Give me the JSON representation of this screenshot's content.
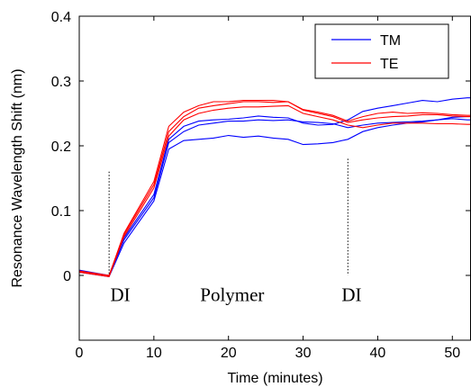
{
  "chart_data": {
    "type": "line",
    "xlabel": "Time (minutes)",
    "ylabel": "Resonance Wavelength Shift (nm)",
    "xlim": [
      0,
      52.5
    ],
    "ylim": [
      -0.1,
      0.4
    ],
    "xticks": [
      0,
      10,
      20,
      30,
      40,
      50
    ],
    "yticks": [
      0,
      0.1,
      0.2,
      0.3,
      0.4
    ],
    "xtick_labels": [
      "0",
      "10",
      "20",
      "30",
      "40",
      "50"
    ],
    "ytick_labels": [
      "0",
      "0.1",
      "0.2",
      "0.3",
      "0.4"
    ],
    "grid": false,
    "legend_position": "top-right",
    "legend": [
      {
        "label": "TM",
        "color": "#0000ff"
      },
      {
        "label": "TE",
        "color": "#ff0000"
      }
    ],
    "series": [
      {
        "name": "TM",
        "color": "#0000ff",
        "x": [
          0,
          4,
          6,
          10,
          12,
          14,
          16,
          18,
          20,
          22,
          24,
          26,
          28,
          30,
          32,
          34,
          36,
          38,
          40,
          42,
          44,
          46,
          48,
          50,
          52,
          52.5
        ],
        "y": [
          0.005,
          -0.002,
          0.05,
          0.115,
          0.195,
          0.208,
          0.21,
          0.212,
          0.216,
          0.213,
          0.215,
          0.212,
          0.21,
          0.202,
          0.203,
          0.205,
          0.21,
          0.222,
          0.228,
          0.232,
          0.235,
          0.237,
          0.24,
          0.242,
          0.24,
          0.24
        ]
      },
      {
        "name": "TM",
        "color": "#0000ff",
        "x": [
          0,
          4,
          6,
          10,
          12,
          14,
          16,
          18,
          20,
          22,
          24,
          26,
          28,
          30,
          32,
          34,
          36,
          38,
          40,
          42,
          44,
          46,
          48,
          50,
          52,
          52.5
        ],
        "y": [
          0.008,
          0.0,
          0.055,
          0.12,
          0.205,
          0.222,
          0.232,
          0.235,
          0.238,
          0.238,
          0.24,
          0.239,
          0.24,
          0.237,
          0.236,
          0.234,
          0.228,
          0.232,
          0.235,
          0.236,
          0.237,
          0.238,
          0.24,
          0.244,
          0.245,
          0.245
        ]
      },
      {
        "name": "TM",
        "color": "#0000ff",
        "x": [
          0,
          4,
          6,
          10,
          12,
          14,
          16,
          18,
          20,
          22,
          24,
          26,
          28,
          30,
          32,
          34,
          36,
          38,
          40,
          42,
          44,
          46,
          48,
          50,
          52,
          52.5
        ],
        "y": [
          0.006,
          -0.001,
          0.058,
          0.125,
          0.21,
          0.23,
          0.238,
          0.24,
          0.241,
          0.243,
          0.246,
          0.244,
          0.243,
          0.235,
          0.232,
          0.233,
          0.24,
          0.253,
          0.258,
          0.262,
          0.266,
          0.27,
          0.268,
          0.272,
          0.274,
          0.274
        ]
      },
      {
        "name": "TE",
        "color": "#ff0000",
        "x": [
          0,
          4,
          6,
          10,
          12,
          14,
          16,
          18,
          20,
          22,
          24,
          26,
          28,
          30,
          32,
          34,
          36,
          38,
          40,
          42,
          44,
          46,
          48,
          50,
          52,
          52.5
        ],
        "y": [
          0.005,
          -0.002,
          0.06,
          0.135,
          0.215,
          0.24,
          0.25,
          0.255,
          0.258,
          0.26,
          0.26,
          0.261,
          0.262,
          0.25,
          0.245,
          0.24,
          0.232,
          0.228,
          0.232,
          0.235,
          0.235,
          0.235,
          0.234,
          0.234,
          0.233,
          0.233
        ]
      },
      {
        "name": "TE",
        "color": "#ff0000",
        "x": [
          0,
          4,
          6,
          10,
          12,
          14,
          16,
          18,
          20,
          22,
          24,
          26,
          28,
          30,
          32,
          34,
          36,
          38,
          40,
          42,
          44,
          46,
          48,
          50,
          52,
          52.5
        ],
        "y": [
          0.007,
          0.0,
          0.063,
          0.14,
          0.222,
          0.245,
          0.258,
          0.262,
          0.265,
          0.268,
          0.268,
          0.267,
          0.268,
          0.255,
          0.25,
          0.245,
          0.236,
          0.24,
          0.243,
          0.245,
          0.246,
          0.248,
          0.248,
          0.246,
          0.245,
          0.245
        ]
      },
      {
        "name": "TE",
        "color": "#ff0000",
        "x": [
          0,
          4,
          6,
          10,
          12,
          14,
          16,
          18,
          20,
          22,
          24,
          26,
          28,
          30,
          32,
          34,
          36,
          38,
          40,
          42,
          44,
          46,
          48,
          50,
          52,
          52.5
        ],
        "y": [
          0.006,
          -0.001,
          0.065,
          0.145,
          0.23,
          0.252,
          0.262,
          0.268,
          0.268,
          0.27,
          0.27,
          0.27,
          0.268,
          0.256,
          0.252,
          0.247,
          0.238,
          0.245,
          0.25,
          0.252,
          0.25,
          0.251,
          0.25,
          0.248,
          0.247,
          0.247
        ]
      }
    ],
    "annotations": [
      {
        "text": "DI",
        "x": 5.5,
        "y": -0.03
      },
      {
        "text": "Polymer",
        "x": 20.5,
        "y": -0.03
      },
      {
        "text": "DI",
        "x": 36.5,
        "y": -0.03
      }
    ],
    "markers": [
      {
        "x": 4,
        "y_from": 0.16,
        "y_to": 0.0
      },
      {
        "x": 36,
        "y_from": 0.18,
        "y_to": 0.0
      }
    ]
  }
}
